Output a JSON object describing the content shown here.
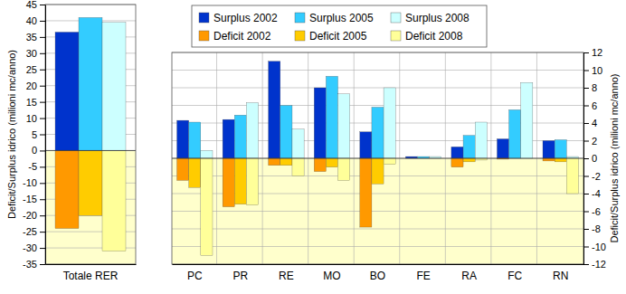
{
  "chart_data": [
    {
      "type": "bar",
      "y_label": "Deficit/Surplus idrico (milioni mc/anno)",
      "categories": [
        "Totale RER"
      ],
      "series": [
        {
          "color": "#0033cc",
          "values": [
            36.5
          ]
        },
        {
          "color": "#33ccff",
          "values": [
            41
          ]
        },
        {
          "color": "#ccffff",
          "values": [
            39.5
          ]
        },
        {
          "color": "#ff9900",
          "values": [
            -24
          ]
        },
        {
          "color": "#ffcc00",
          "values": [
            -20
          ]
        },
        {
          "color": "#ffff99",
          "values": [
            -31
          ]
        }
      ],
      "ylim": [
        -35,
        45
      ],
      "yticks": [
        -35,
        -30,
        -25,
        -20,
        -15,
        -10,
        -5,
        0,
        5,
        10,
        15,
        20,
        25,
        30,
        35,
        40,
        45
      ],
      "grid": true
    },
    {
      "type": "bar",
      "y_label": "Deficit/Surplus idrico (milioni mc/anno)",
      "categories": [
        "PC",
        "PR",
        "RE",
        "MO",
        "BO",
        "FE",
        "RA",
        "FC",
        "RN"
      ],
      "series": [
        {
          "name": "Surplus 2002",
          "color": "#0033cc",
          "values": [
            4.3,
            4.4,
            11,
            8.0,
            3.0,
            0.2,
            1.3,
            2.2,
            2.0
          ]
        },
        {
          "name": "Surplus 2005",
          "color": "#33ccff",
          "values": [
            4.1,
            4.9,
            6.0,
            9.3,
            5.8,
            0.2,
            2.6,
            5.5,
            2.1
          ]
        },
        {
          "name": "Surplus 2008",
          "color": "#ccffff",
          "values": [
            0.9,
            6.3,
            3.3,
            7.3,
            8.0,
            0.2,
            4.1,
            8.6,
            0.2
          ]
        },
        {
          "name": "Deficit 2002",
          "color": "#ff9900",
          "values": [
            -2.5,
            -5.5,
            -0.8,
            -1.5,
            -7.8,
            0,
            -1.0,
            -0.1,
            -0.3
          ]
        },
        {
          "name": "Deficit 2005",
          "color": "#ffcc00",
          "values": [
            -3.3,
            -5.2,
            -0.8,
            -1.0,
            -2.9,
            0,
            -0.4,
            0,
            -0.4
          ]
        },
        {
          "name": "Deficit 2008",
          "color": "#ffff99",
          "values": [
            -11,
            -5.3,
            -2.0,
            -2.5,
            -0.7,
            0,
            -0.2,
            0,
            -4.0
          ]
        }
      ],
      "ylim": [
        -12,
        12
      ],
      "yticks": [
        -12,
        -10,
        -8,
        -6,
        -4,
        -2,
        0,
        2,
        4,
        6,
        8,
        10,
        12
      ],
      "grid": true,
      "legend": "top"
    }
  ]
}
